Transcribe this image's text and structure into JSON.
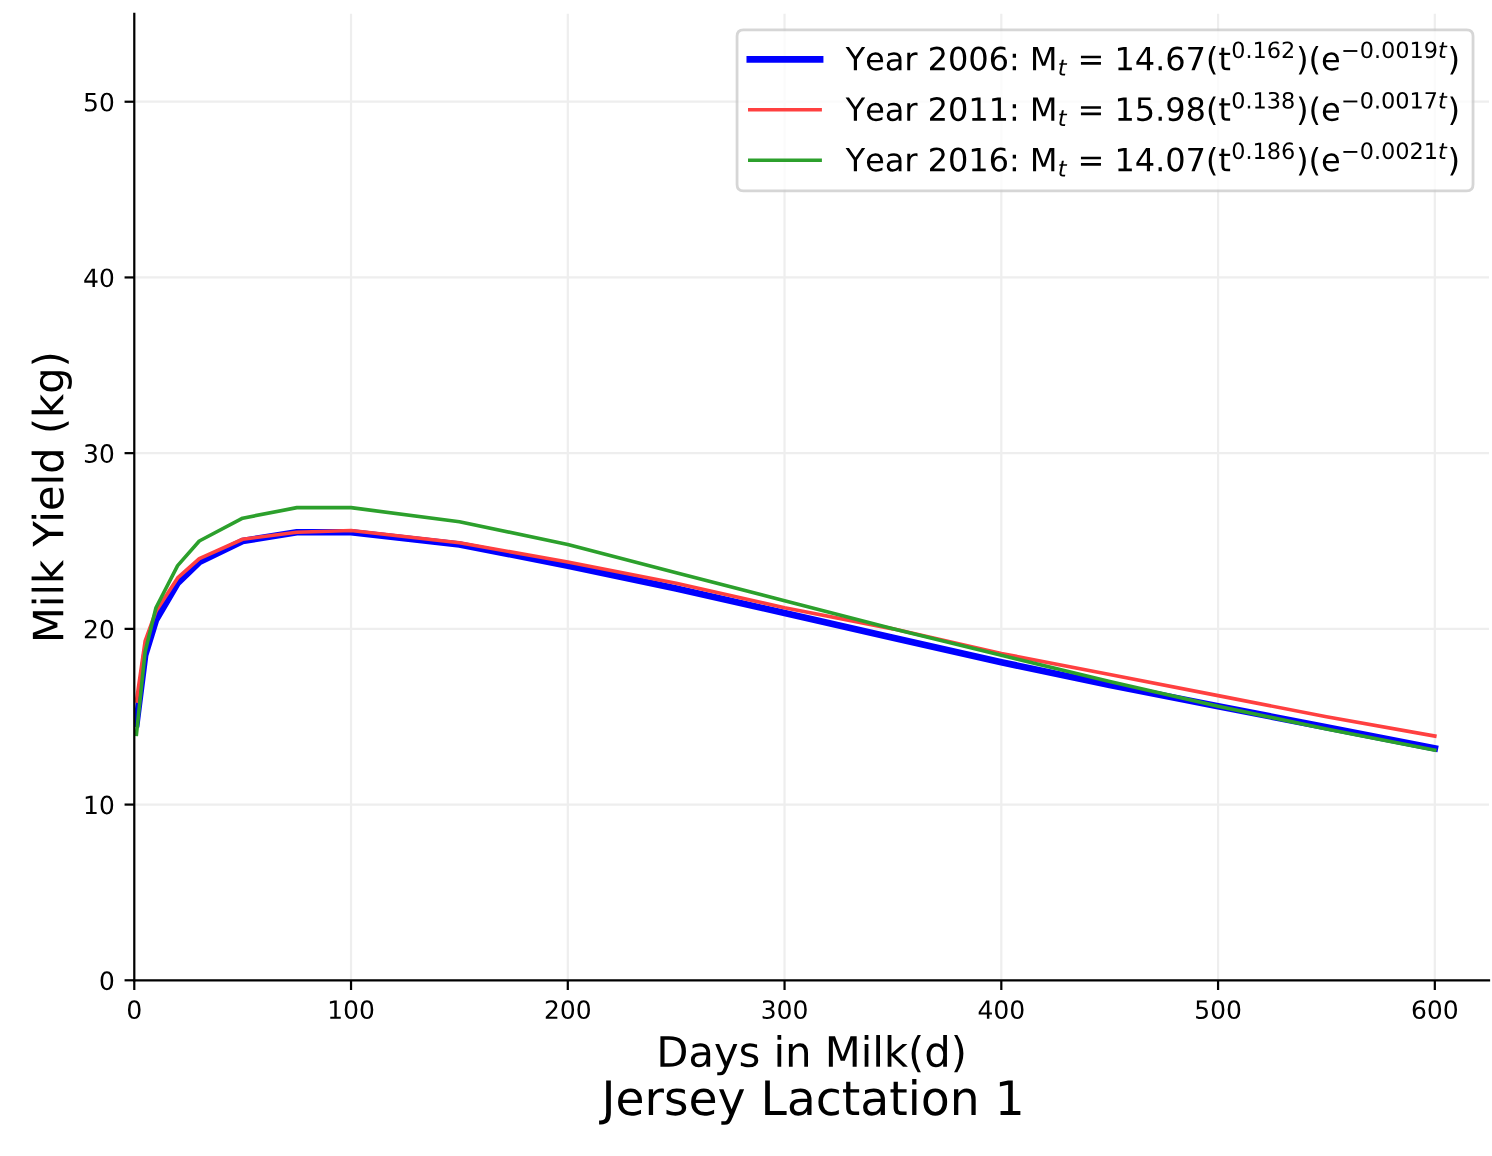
{
  "chart_data": {
    "type": "line",
    "title": "Jersey Lactation 1",
    "xlabel": "Days in Milk(d)",
    "ylabel": "Milk Yield (kg)",
    "x": [
      1,
      5,
      10,
      20,
      30,
      50,
      75,
      100,
      150,
      200,
      250,
      300,
      350,
      400,
      450,
      500,
      550,
      600
    ],
    "series": [
      {
        "name": "Year 2006: M$_{t}$ = 14.67(t$^{0.162}$)(e$^{−0.0019t}$)",
        "color": "#0000ff",
        "values": [
          14.6,
          18.5,
          20.5,
          22.6,
          23.8,
          25.0,
          25.5,
          25.5,
          24.8,
          23.6,
          22.3,
          20.9,
          19.5,
          18.1,
          16.8,
          15.6,
          14.4,
          13.2
        ]
      },
      {
        "name": "Year 2011: M$_{t}$ = 15.98(t$^{0.138}$)(e$^{−0.0017t}$)",
        "color": "#ff4040",
        "values": [
          15.9,
          19.3,
          21.0,
          22.9,
          24.0,
          25.1,
          25.5,
          25.6,
          24.9,
          23.8,
          22.6,
          21.2,
          20.0,
          18.6,
          17.4,
          16.2,
          15.0,
          13.9
        ]
      },
      {
        "name": "Year 2016: M$_{t}$ = 14.07(t$^{0.186}$)(e$^{−0.0021t}$)",
        "color": "#2ca02c",
        "values": [
          14.0,
          18.7,
          21.2,
          23.6,
          25.0,
          26.3,
          26.9,
          26.9,
          26.1,
          24.8,
          23.2,
          21.6,
          20.0,
          18.5,
          17.0,
          15.6,
          14.3,
          13.1
        ]
      }
    ],
    "xlim": [
      0,
      625
    ],
    "ylim": [
      0,
      55
    ],
    "xticks": [
      0,
      100,
      200,
      300,
      400,
      500,
      600
    ],
    "yticks": [
      0,
      10,
      20,
      30,
      40,
      50
    ],
    "grid": true,
    "legend": "top right",
    "marker": "none",
    "line_style": "solid"
  }
}
